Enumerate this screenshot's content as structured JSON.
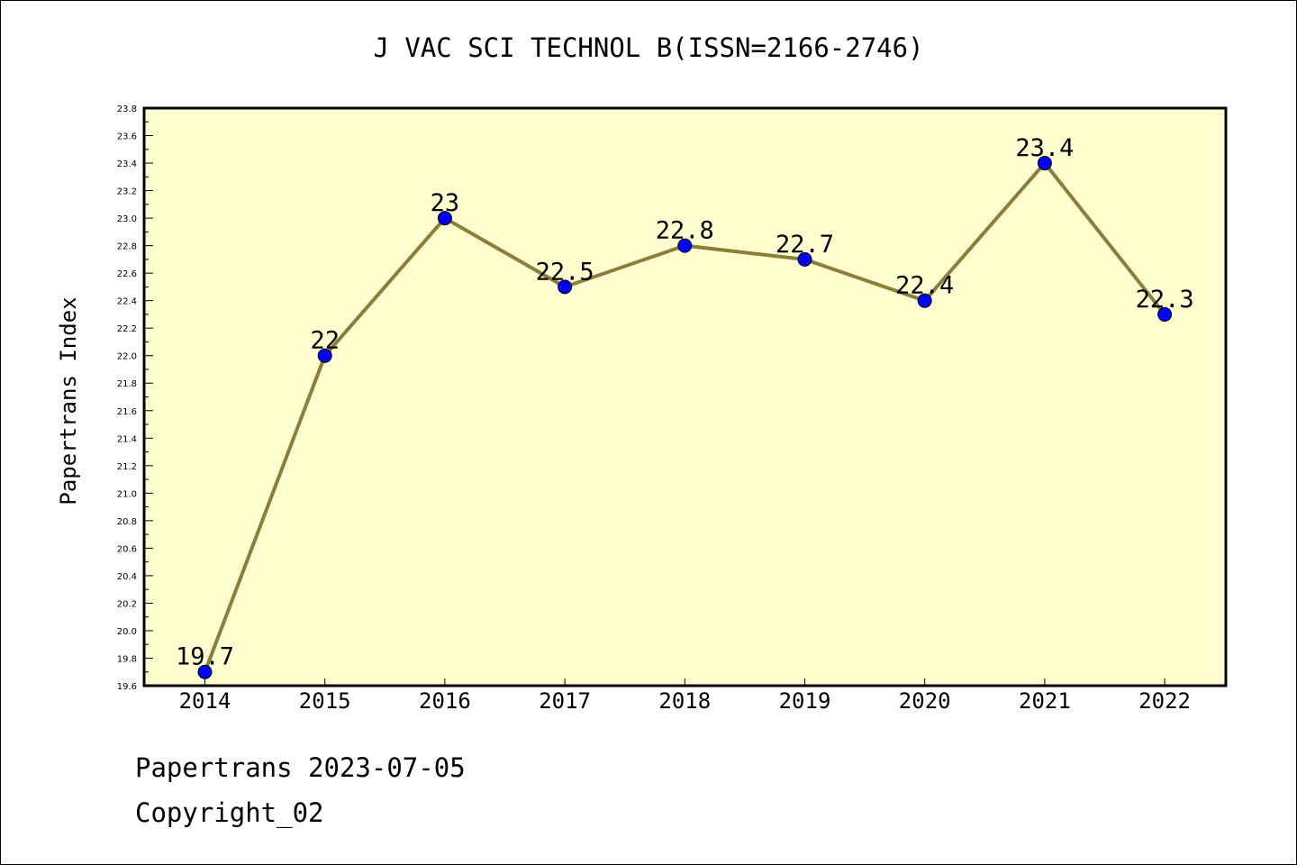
{
  "chart_data": {
    "type": "line",
    "title": "J VAC SCI TECHNOL B(ISSN=2166-2746)",
    "xlabel": "",
    "ylabel": "Papertrans Index",
    "categories": [
      "2014",
      "2015",
      "2016",
      "2017",
      "2018",
      "2019",
      "2020",
      "2021",
      "2022"
    ],
    "values": [
      19.7,
      22,
      23,
      22.5,
      22.8,
      22.7,
      22.4,
      23.4,
      22.3
    ],
    "data_labels": [
      "19.7",
      "22",
      "23",
      "22.5",
      "22.8",
      "22.7",
      "22.4",
      "23.4",
      "22.3"
    ],
    "ylim": [
      19.6,
      23.8
    ],
    "yticks": [
      "19.6",
      "19.8",
      "20.0",
      "20.2",
      "20.4",
      "20.6",
      "20.8",
      "21.0",
      "21.2",
      "21.4",
      "21.6",
      "21.8",
      "22.0",
      "22.2",
      "22.4",
      "22.6",
      "22.8",
      "23.0",
      "23.2",
      "23.4",
      "23.6",
      "23.8"
    ],
    "grid": false,
    "colors": {
      "plot_background": "#ffffd0",
      "line": "#8b7d3a",
      "marker": "#0000ff"
    }
  },
  "footer": {
    "line1": "Papertrans 2023-07-05",
    "line2": "Copyright_02"
  }
}
